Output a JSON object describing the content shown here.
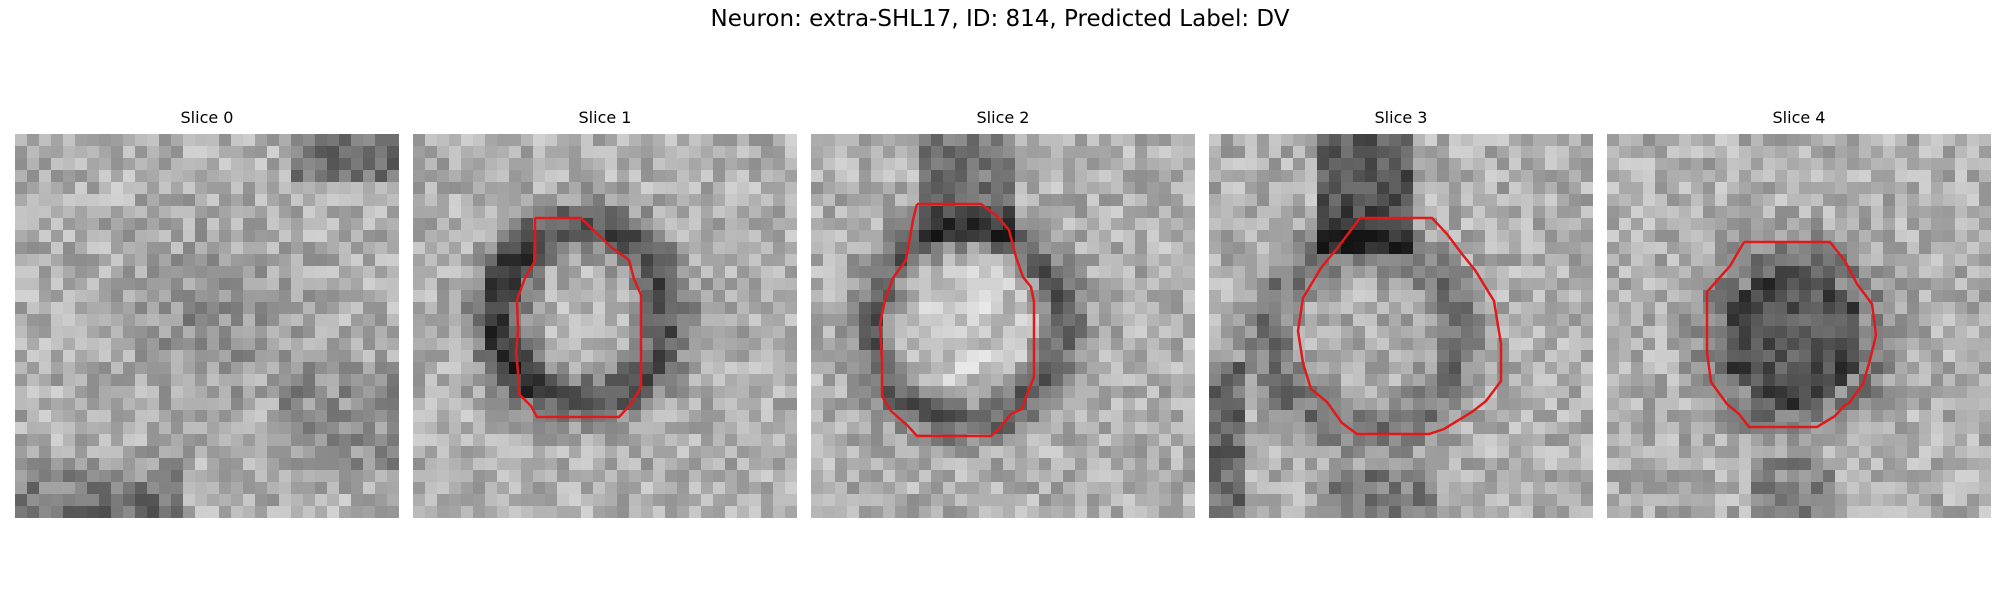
{
  "figure": {
    "title": "Neuron: extra-SHL17, ID: 814, Predicted Label: DV"
  },
  "colors": {
    "contour": "#e01a1a",
    "background": "#ffffff"
  },
  "panels": [
    {
      "title": "Slice 0",
      "has_contour": false
    },
    {
      "title": "Slice 1",
      "has_contour": true
    },
    {
      "title": "Slice 2",
      "has_contour": true
    },
    {
      "title": "Slice 3",
      "has_contour": true
    },
    {
      "title": "Slice 4",
      "has_contour": true
    }
  ]
}
